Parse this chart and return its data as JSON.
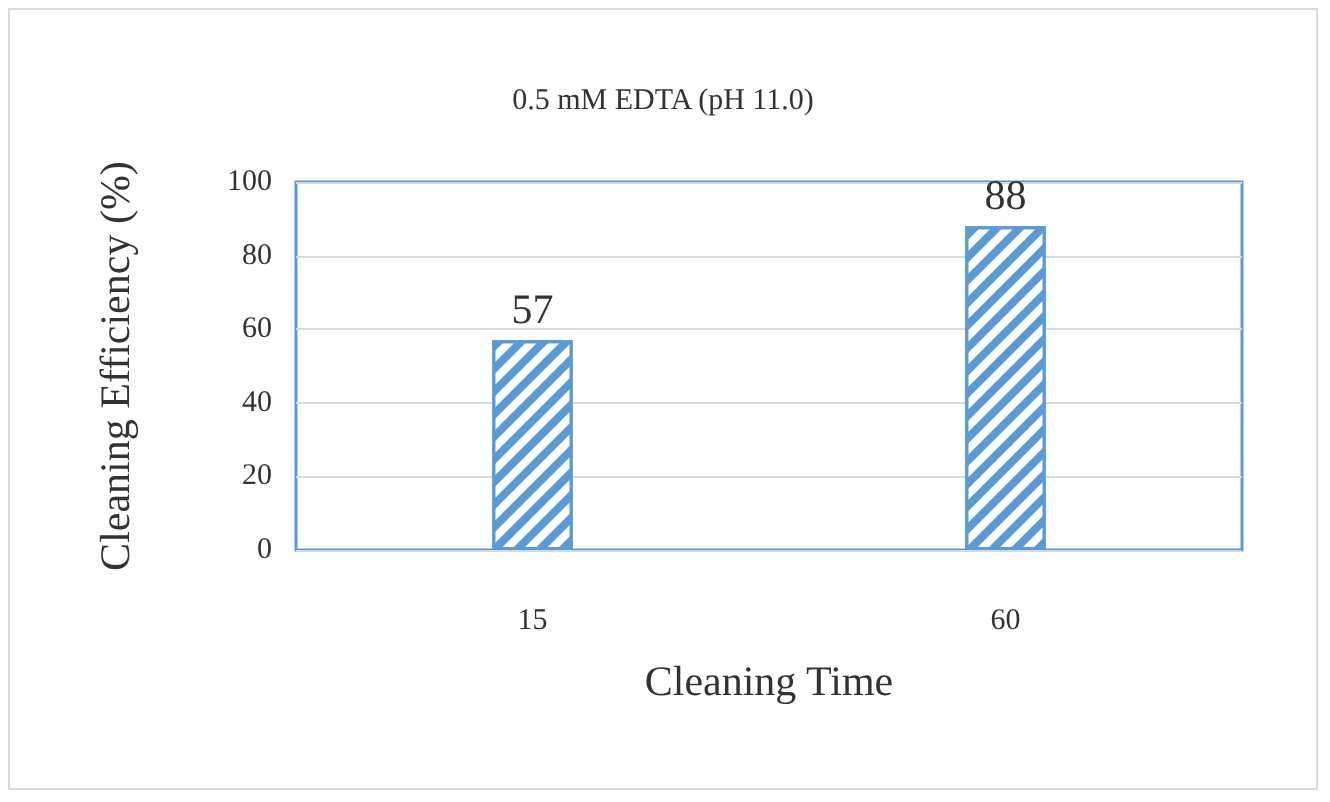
{
  "chart_data": {
    "type": "bar",
    "title": "0.5 mM EDTA (pH 11.0)",
    "xlabel": "Cleaning Time",
    "ylabel": "Cleaning Efficiency (%)",
    "categories": [
      "15",
      "60"
    ],
    "values": [
      57,
      88
    ],
    "color": "#5b9bd5",
    "data_labels": true,
    "ylim": [
      0,
      100
    ],
    "yticks": [
      0,
      20,
      40,
      60,
      80,
      100
    ],
    "grid": "y"
  }
}
